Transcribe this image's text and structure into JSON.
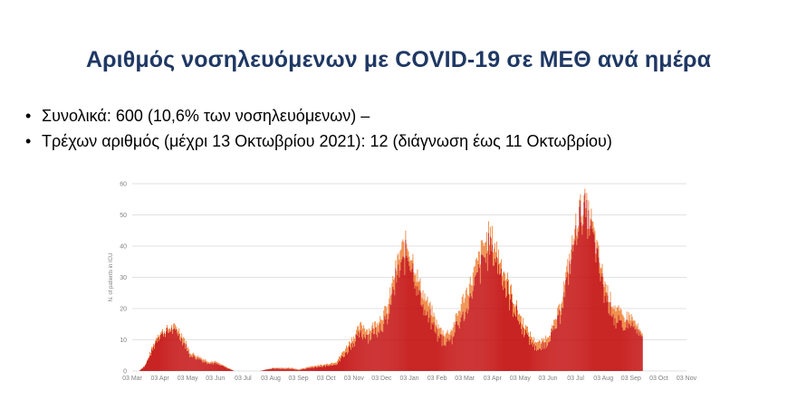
{
  "slide": {
    "title": "Αριθμός νοσηλευόμενων με COVID-19 σε ΜΕΘ ανά ημέρα",
    "bullets": [
      "Συνολικά: 600 (10,6% των νοσηλευόμενων) –",
      "Τρέχων αριθμός (μέχρι 13 Οκτωβρίου 2021): 12 (διάγνωση έως 11 Οκτωβρίου)"
    ],
    "bullet_symbol": "•"
  },
  "chart_data": {
    "type": "bar",
    "title": "",
    "xlabel": "",
    "ylabel": "N. of patients in ICU",
    "ylim": [
      0,
      60
    ],
    "yticks": [
      0,
      10,
      20,
      30,
      40,
      50,
      60
    ],
    "grid": true,
    "stacked": true,
    "xticks": [
      "03 Mar",
      "03 Apr",
      "03 May",
      "03 Jun",
      "03 Jul",
      "03 Aug",
      "03 Sep",
      "03 Oct",
      "03 Nov",
      "03 Dec",
      "03 Jan",
      "03 Feb",
      "03 Mar",
      "03 Apr",
      "03 May",
      "03 Jun",
      "03 Jul",
      "03 Aug",
      "03 Sep",
      "03 Oct",
      "03 Nov"
    ],
    "weekly_points": [
      {
        "week": 0,
        "total": 0,
        "top": 0
      },
      {
        "week": 1,
        "total": 0,
        "top": 0
      },
      {
        "week": 2,
        "total": 2,
        "top": 0.3
      },
      {
        "week": 3,
        "total": 7,
        "top": 1
      },
      {
        "week": 4,
        "total": 12,
        "top": 1
      },
      {
        "week": 5,
        "total": 13,
        "top": 1
      },
      {
        "week": 6,
        "total": 14,
        "top": 1
      },
      {
        "week": 7,
        "total": 14,
        "top": 1.5
      },
      {
        "week": 8,
        "total": 11,
        "top": 1.5
      },
      {
        "week": 9,
        "total": 6,
        "top": 1
      },
      {
        "week": 10,
        "total": 5,
        "top": 1
      },
      {
        "week": 11,
        "total": 4,
        "top": 0.7
      },
      {
        "week": 12,
        "total": 3,
        "top": 0.5
      },
      {
        "week": 13,
        "total": 3,
        "top": 0.5
      },
      {
        "week": 14,
        "total": 2,
        "top": 0.3
      },
      {
        "week": 15,
        "total": 1,
        "top": 0.2
      },
      {
        "week": 16,
        "total": 0,
        "top": 0
      },
      {
        "week": 20,
        "total": 0,
        "top": 0
      },
      {
        "week": 21,
        "total": 0.5,
        "top": 0
      },
      {
        "week": 22,
        "total": 1,
        "top": 0.2
      },
      {
        "week": 25,
        "total": 1,
        "top": 0.3
      },
      {
        "week": 26,
        "total": 0.5,
        "top": 0.2
      },
      {
        "week": 27,
        "total": 1,
        "top": 0.3
      },
      {
        "week": 28,
        "total": 1.5,
        "top": 0.5
      },
      {
        "week": 30,
        "total": 2,
        "top": 0.5
      },
      {
        "week": 32,
        "total": 3,
        "top": 0.8
      },
      {
        "week": 33,
        "total": 6,
        "top": 1.5
      },
      {
        "week": 34,
        "total": 9,
        "top": 2
      },
      {
        "week": 35,
        "total": 12,
        "top": 2
      },
      {
        "week": 36,
        "total": 15,
        "top": 3
      },
      {
        "week": 37,
        "total": 13,
        "top": 2
      },
      {
        "week": 38,
        "total": 15,
        "top": 3
      },
      {
        "week": 40,
        "total": 20,
        "top": 4
      },
      {
        "week": 41,
        "total": 30,
        "top": 4
      },
      {
        "week": 42,
        "total": 38,
        "top": 5
      },
      {
        "week": 43,
        "total": 41,
        "top": 4
      },
      {
        "week": 44,
        "total": 36,
        "top": 4
      },
      {
        "week": 45,
        "total": 28,
        "top": 4
      },
      {
        "week": 46,
        "total": 23,
        "top": 4
      },
      {
        "week": 47,
        "total": 19,
        "top": 4
      },
      {
        "week": 48,
        "total": 14,
        "top": 3
      },
      {
        "week": 49,
        "total": 12,
        "top": 3
      },
      {
        "week": 50,
        "total": 13,
        "top": 3
      },
      {
        "week": 51,
        "total": 18,
        "top": 4
      },
      {
        "week": 52,
        "total": 24,
        "top": 5
      },
      {
        "week": 53,
        "total": 28,
        "top": 5
      },
      {
        "week": 54,
        "total": 34,
        "top": 5
      },
      {
        "week": 55,
        "total": 40,
        "top": 5
      },
      {
        "week": 56,
        "total": 44,
        "top": 5
      },
      {
        "week": 57,
        "total": 40,
        "top": 5
      },
      {
        "week": 58,
        "total": 34,
        "top": 4
      },
      {
        "week": 59,
        "total": 28,
        "top": 4
      },
      {
        "week": 60,
        "total": 22,
        "top": 3
      },
      {
        "week": 61,
        "total": 17,
        "top": 3
      },
      {
        "week": 62,
        "total": 13,
        "top": 2
      },
      {
        "week": 63,
        "total": 10,
        "top": 2
      },
      {
        "week": 64,
        "total": 9,
        "top": 2
      },
      {
        "week": 65,
        "total": 11,
        "top": 2
      },
      {
        "week": 66,
        "total": 14,
        "top": 2
      },
      {
        "week": 67,
        "total": 20,
        "top": 3
      },
      {
        "week": 68,
        "total": 30,
        "top": 3
      },
      {
        "week": 69,
        "total": 40,
        "top": 3
      },
      {
        "week": 70,
        "total": 51,
        "top": 3
      },
      {
        "week": 71,
        "total": 53,
        "top": 2
      },
      {
        "week": 72,
        "total": 48,
        "top": 3
      },
      {
        "week": 73,
        "total": 38,
        "top": 3
      },
      {
        "week": 74,
        "total": 29,
        "top": 4
      },
      {
        "week": 75,
        "total": 23,
        "top": 4
      },
      {
        "week": 76,
        "total": 20,
        "top": 4
      },
      {
        "week": 77,
        "total": 17,
        "top": 4
      },
      {
        "week": 78,
        "total": 18,
        "top": 3
      },
      {
        "week": 79,
        "total": 15,
        "top": 2
      },
      {
        "week": 80,
        "total": 11,
        "top": 1
      }
    ],
    "series_colors": [
      "#c00000",
      "#ed7d31"
    ],
    "grid_color": "#d9d9d9",
    "axis_text_color": "#7f7f7f"
  }
}
